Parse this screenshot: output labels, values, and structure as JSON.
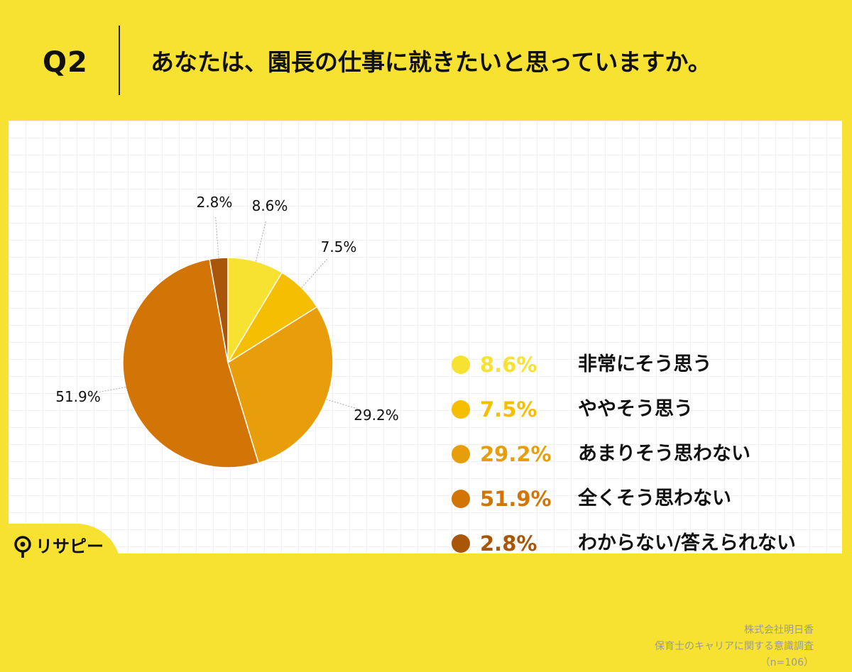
{
  "header": {
    "question_label": "Q2",
    "question_text": "あなたは、園長の仕事に就きたいと思っていますか。"
  },
  "chart_data": {
    "type": "pie",
    "start_angle_deg": 0,
    "direction": "clockwise",
    "slices": [
      {
        "label": "非常にそう思う",
        "value": 8.6,
        "display": "8.6%",
        "color": "#f8e231"
      },
      {
        "label": "ややそう思う",
        "value": 7.5,
        "display": "7.5%",
        "color": "#f6be00"
      },
      {
        "label": "あまりそう思わない",
        "value": 29.2,
        "display": "29.2%",
        "color": "#e89e0a"
      },
      {
        "label": "全くそう思わない",
        "value": 51.9,
        "display": "51.9%",
        "color": "#d27406"
      },
      {
        "label": "わからない/答えられない",
        "value": 2.8,
        "display": "2.8%",
        "color": "#a9560a"
      }
    ],
    "legend_position": "right",
    "grid": false
  },
  "source": {
    "company": "株式会社明日香",
    "survey": "保育士のキャリアに関する意識調査",
    "sample": "（n=106）"
  },
  "logo": {
    "text": "リサピー",
    "icon": "pin-icon"
  }
}
